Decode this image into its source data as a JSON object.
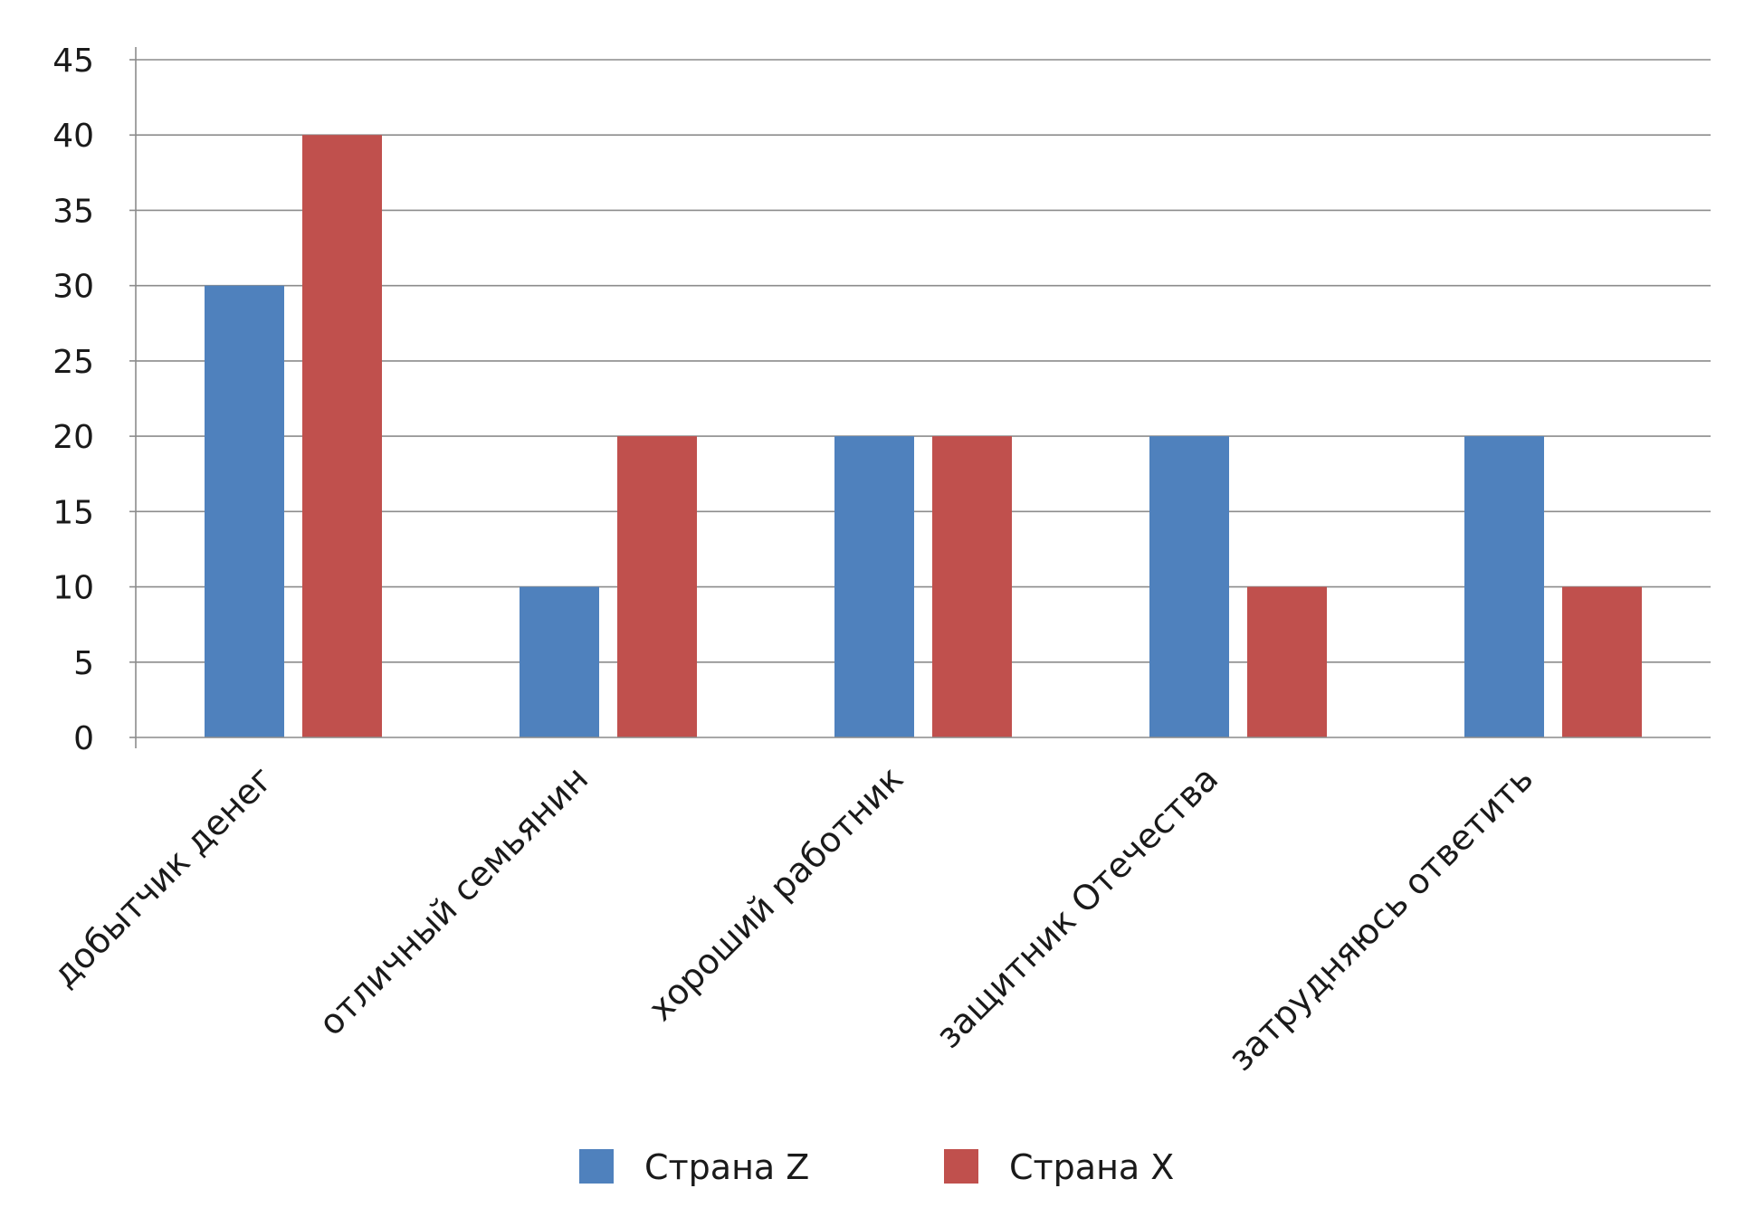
{
  "chart_data": {
    "type": "bar",
    "title": "",
    "xlabel": "",
    "ylabel": "",
    "ylim": [
      0,
      45
    ],
    "yticks": [
      0,
      5,
      10,
      15,
      20,
      25,
      30,
      35,
      40,
      45
    ],
    "grid": true,
    "legend_position": "bottom",
    "categories": [
      "добытчик денег",
      "отличный семьянин",
      "хороший работник",
      "защитник Отечества",
      "затрудняюсь ответить"
    ],
    "series": [
      {
        "name": "Страна Z",
        "color": "#4F81BD",
        "values": [
          30,
          10,
          20,
          20,
          20
        ]
      },
      {
        "name": "Страна X",
        "color": "#C0504D",
        "values": [
          40,
          20,
          20,
          10,
          10
        ]
      }
    ]
  }
}
